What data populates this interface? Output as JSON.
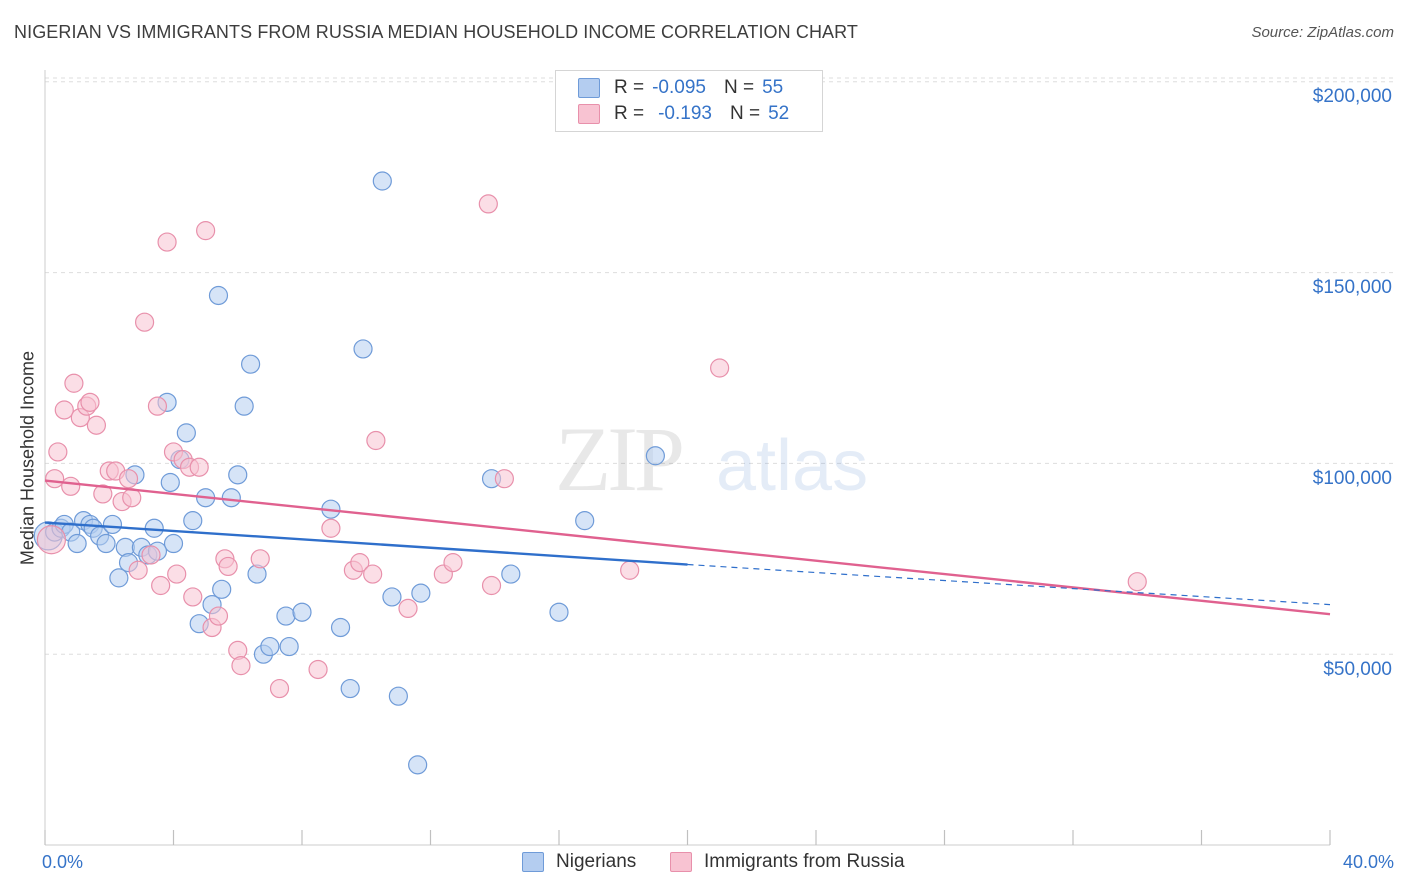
{
  "header": {
    "title": "NIGERIAN VS IMMIGRANTS FROM RUSSIA MEDIAN HOUSEHOLD INCOME CORRELATION CHART",
    "source": "Source: ZipAtlas.com"
  },
  "watermark": {
    "zip": "ZIP",
    "atlas": "atlas"
  },
  "legend": {
    "rows": [
      {
        "r_label": "R =",
        "r_value": "-0.095",
        "n_label": "N =",
        "n_value": "55"
      },
      {
        "r_label": "R =",
        "r_value": "-0.193",
        "n_label": "N =",
        "n_value": "52"
      }
    ]
  },
  "colors": {
    "nigerian_fill": "#b4cdf0",
    "nigerian_stroke": "#6f9bd8",
    "nigerian_line": "#2f6fcb",
    "russia_fill": "#f8c3d2",
    "russia_stroke": "#e890ab",
    "russia_line": "#e0618f",
    "axis_text": "#3573c8",
    "grid": "#dddddd"
  },
  "chart_data": {
    "type": "scatter",
    "title": "NIGERIAN VS IMMIGRANTS FROM RUSSIA MEDIAN HOUSEHOLD INCOME CORRELATION CHART",
    "ylabel": "Median Household Income",
    "xlabel": "",
    "xlim": [
      0,
      40
    ],
    "ylim": [
      0,
      205000
    ],
    "x_tick_labels": [
      "0.0%",
      "40.0%"
    ],
    "y_ticks": [
      50000,
      100000,
      150000,
      200000
    ],
    "y_tick_labels": [
      "$50,000",
      "$100,000",
      "$150,000",
      "$200,000"
    ],
    "grid": "horizontal dashed",
    "legend_position": "top-center",
    "series": [
      {
        "name": "Nigerians",
        "points": [
          [
            0.1,
            81000
          ],
          [
            0.3,
            82000
          ],
          [
            0.5,
            83000
          ],
          [
            0.6,
            84000
          ],
          [
            0.8,
            82000
          ],
          [
            1.0,
            79000
          ],
          [
            1.2,
            85000
          ],
          [
            1.4,
            84000
          ],
          [
            1.5,
            83000
          ],
          [
            1.7,
            81000
          ],
          [
            1.9,
            79000
          ],
          [
            2.1,
            84000
          ],
          [
            2.3,
            70000
          ],
          [
            2.5,
            78000
          ],
          [
            2.6,
            74000
          ],
          [
            2.8,
            97000
          ],
          [
            3.0,
            78000
          ],
          [
            3.2,
            76000
          ],
          [
            3.4,
            83000
          ],
          [
            3.5,
            77000
          ],
          [
            3.8,
            116000
          ],
          [
            3.9,
            95000
          ],
          [
            4.0,
            79000
          ],
          [
            4.2,
            101000
          ],
          [
            4.4,
            108000
          ],
          [
            4.6,
            85000
          ],
          [
            4.8,
            58000
          ],
          [
            5.0,
            91000
          ],
          [
            5.2,
            63000
          ],
          [
            5.4,
            144000
          ],
          [
            5.5,
            67000
          ],
          [
            5.8,
            91000
          ],
          [
            6.0,
            97000
          ],
          [
            6.2,
            115000
          ],
          [
            6.4,
            126000
          ],
          [
            6.6,
            71000
          ],
          [
            6.8,
            50000
          ],
          [
            7.0,
            52000
          ],
          [
            7.5,
            60000
          ],
          [
            7.6,
            52000
          ],
          [
            8.0,
            61000
          ],
          [
            8.9,
            88000
          ],
          [
            9.2,
            57000
          ],
          [
            9.5,
            41000
          ],
          [
            9.9,
            130000
          ],
          [
            10.5,
            174000
          ],
          [
            10.8,
            65000
          ],
          [
            11.0,
            39000
          ],
          [
            11.6,
            21000
          ],
          [
            11.7,
            66000
          ],
          [
            13.9,
            96000
          ],
          [
            14.5,
            71000
          ],
          [
            16.0,
            61000
          ],
          [
            16.8,
            85000
          ],
          [
            19.0,
            102000
          ]
        ]
      },
      {
        "name": "Immigrants from Russia",
        "points": [
          [
            0.2,
            80000
          ],
          [
            0.3,
            96000
          ],
          [
            0.4,
            103000
          ],
          [
            0.6,
            114000
          ],
          [
            0.8,
            94000
          ],
          [
            0.9,
            121000
          ],
          [
            1.1,
            112000
          ],
          [
            1.3,
            115000
          ],
          [
            1.4,
            116000
          ],
          [
            1.6,
            110000
          ],
          [
            1.8,
            92000
          ],
          [
            2.0,
            98000
          ],
          [
            2.2,
            98000
          ],
          [
            2.4,
            90000
          ],
          [
            2.6,
            96000
          ],
          [
            2.7,
            91000
          ],
          [
            2.9,
            72000
          ],
          [
            3.1,
            137000
          ],
          [
            3.3,
            76000
          ],
          [
            3.5,
            115000
          ],
          [
            3.6,
            68000
          ],
          [
            3.8,
            158000
          ],
          [
            4.0,
            103000
          ],
          [
            4.1,
            71000
          ],
          [
            4.3,
            101000
          ],
          [
            4.5,
            99000
          ],
          [
            4.6,
            65000
          ],
          [
            4.8,
            99000
          ],
          [
            5.0,
            161000
          ],
          [
            5.2,
            57000
          ],
          [
            5.4,
            60000
          ],
          [
            5.6,
            75000
          ],
          [
            5.7,
            73000
          ],
          [
            6.0,
            51000
          ],
          [
            6.1,
            47000
          ],
          [
            6.7,
            75000
          ],
          [
            7.3,
            41000
          ],
          [
            8.5,
            46000
          ],
          [
            8.9,
            83000
          ],
          [
            9.6,
            72000
          ],
          [
            9.8,
            74000
          ],
          [
            10.2,
            71000
          ],
          [
            10.3,
            106000
          ],
          [
            11.3,
            62000
          ],
          [
            12.4,
            71000
          ],
          [
            12.7,
            74000
          ],
          [
            13.8,
            168000
          ],
          [
            13.9,
            68000
          ],
          [
            14.3,
            96000
          ],
          [
            18.2,
            72000
          ],
          [
            21.0,
            125000
          ],
          [
            34.0,
            69000
          ]
        ]
      }
    ],
    "trend_lines": [
      {
        "name": "Nigerians",
        "x": [
          0,
          20
        ],
        "y": [
          84500,
          73500
        ],
        "dashed_extension_to": 40,
        "dashed_extension_y": 63000
      },
      {
        "name": "Immigrants from Russia",
        "x": [
          0,
          40
        ],
        "y": [
          95500,
          60500
        ]
      }
    ]
  },
  "bottom_legend": {
    "items": [
      {
        "label": "Nigerians"
      },
      {
        "label": "Immigrants from Russia"
      }
    ]
  }
}
